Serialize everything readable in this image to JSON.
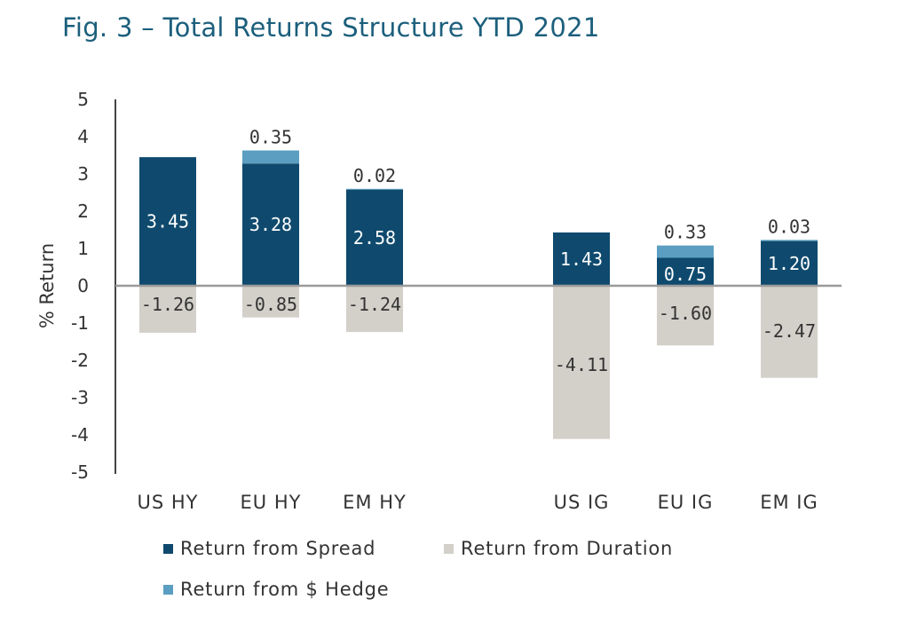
{
  "title": "Fig. 3 – Total Returns Structure YTD 2021",
  "colors": {
    "spread": "#0f4a6e",
    "duration": "#d3d0ca",
    "hedge": "#5b9ec1",
    "axis": "#444444",
    "zero_line": "#9a9a9a",
    "title": "#1c5f7c"
  },
  "chart_data": {
    "type": "bar",
    "stacked": true,
    "title": "Fig. 3 – Total Returns Structure YTD 2021",
    "xlabel": "",
    "ylabel": "% Return",
    "ylim": [
      -5,
      5
    ],
    "yticks": [
      5,
      4,
      3,
      2,
      1,
      0,
      -1,
      -2,
      -3,
      -4,
      -5
    ],
    "categories": [
      "US HY",
      "EU HY",
      "EM HY",
      "US IG",
      "EU IG",
      "EM IG"
    ],
    "series": [
      {
        "name": "Return from Spread",
        "values": [
          3.45,
          3.28,
          2.58,
          1.43,
          0.75,
          1.2
        ],
        "labels": [
          "3.45",
          "3.28",
          "2.58",
          "1.43",
          "0.75",
          "1.20"
        ]
      },
      {
        "name": "Return from Duration",
        "values": [
          -1.26,
          -0.85,
          -1.24,
          -4.11,
          -1.6,
          -2.47
        ],
        "labels": [
          "-1.26",
          "-0.85",
          "-1.24",
          "-4.11",
          "-1.60",
          "-2.47"
        ]
      },
      {
        "name": "Return from $ Hedge",
        "values": [
          0,
          0.35,
          0.02,
          0,
          0.33,
          0.03
        ],
        "labels": [
          "",
          "0.35",
          "0.02",
          "",
          "0.33",
          "0.03"
        ]
      }
    ],
    "legend_position": "bottom",
    "grid": false
  },
  "legend": {
    "items": [
      {
        "label": "Return from Spread"
      },
      {
        "label": "Return from Duration"
      },
      {
        "label": "Return from $ Hedge"
      }
    ]
  }
}
